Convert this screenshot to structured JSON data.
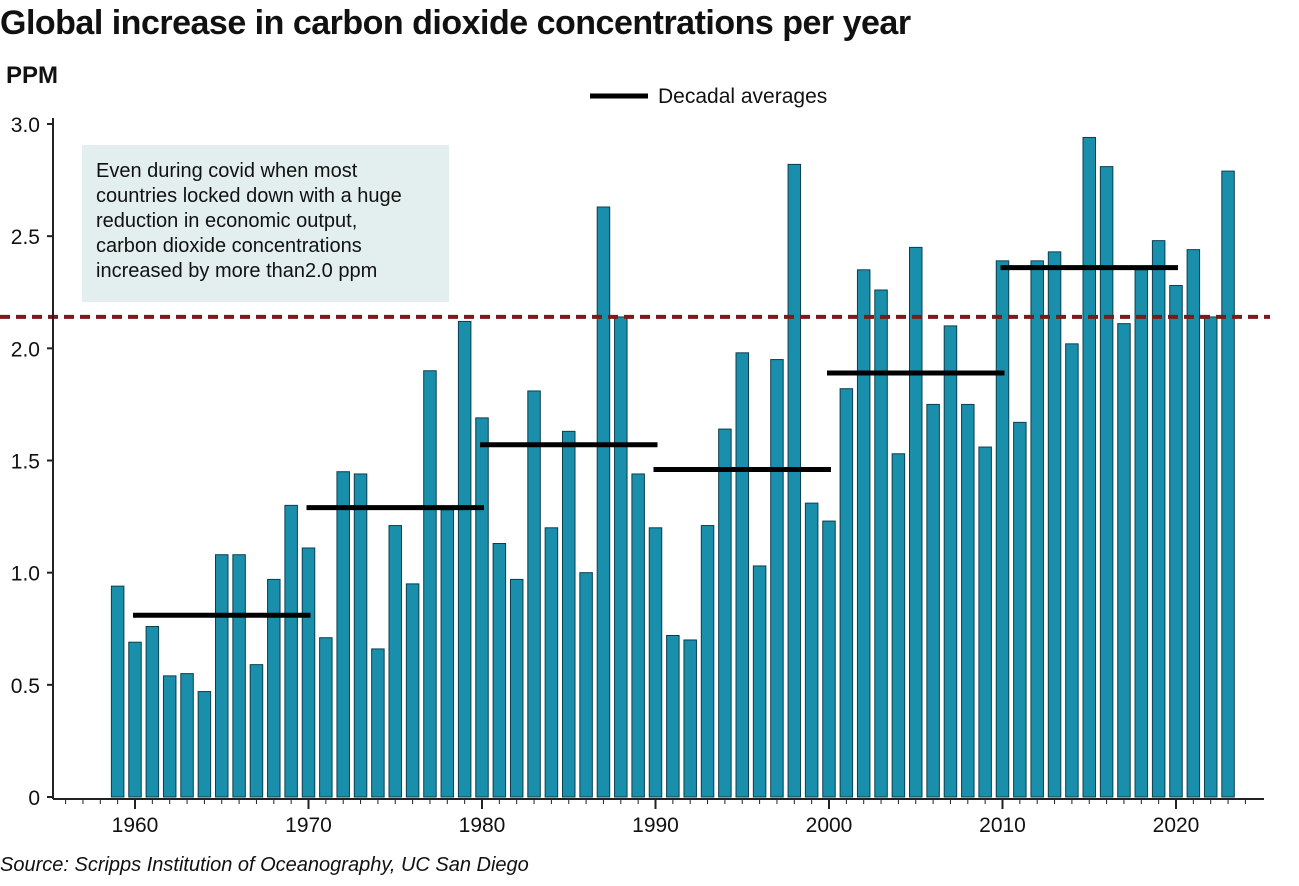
{
  "page": {
    "title": "Global increase in carbon dioxide concentrations per year",
    "unit_label": "PPM",
    "source": "Source: Scripps Institution of Oceanography, UC San Diego"
  },
  "chart_data": {
    "type": "bar",
    "title": "Global increase in carbon dioxide concentrations per year",
    "ylabel": "PPM",
    "xlabel": "",
    "ylim": [
      0,
      3.0
    ],
    "xlim": [
      1955.5,
      2024.5
    ],
    "y_ticks": [
      0,
      0.5,
      1.0,
      1.5,
      2.0,
      2.5,
      3.0
    ],
    "y_tick_labels": [
      "0",
      "0.5",
      "1.0",
      "1.5",
      "2.0",
      "2.5",
      "3.0"
    ],
    "x_ticks": [
      1960,
      1970,
      1980,
      1990,
      2000,
      2010,
      2020
    ],
    "x_tick_labels": [
      "1960",
      "1970",
      "1980",
      "1990",
      "2000",
      "2010",
      "2020"
    ],
    "bar_color": "#1a8fab",
    "categories": [
      1959,
      1960,
      1961,
      1962,
      1963,
      1964,
      1965,
      1966,
      1967,
      1968,
      1969,
      1970,
      1971,
      1972,
      1973,
      1974,
      1975,
      1976,
      1977,
      1978,
      1979,
      1980,
      1981,
      1982,
      1983,
      1984,
      1985,
      1986,
      1987,
      1988,
      1989,
      1990,
      1991,
      1992,
      1993,
      1994,
      1995,
      1996,
      1997,
      1998,
      1999,
      2000,
      2001,
      2002,
      2003,
      2004,
      2005,
      2006,
      2007,
      2008,
      2009,
      2010,
      2011,
      2012,
      2013,
      2014,
      2015,
      2016,
      2017,
      2018,
      2019,
      2020,
      2021,
      2022,
      2023
    ],
    "values": [
      0.94,
      0.69,
      0.76,
      0.54,
      0.55,
      0.47,
      1.08,
      1.08,
      0.59,
      0.97,
      1.3,
      1.11,
      0.71,
      1.45,
      1.44,
      0.66,
      1.21,
      0.95,
      1.9,
      1.28,
      2.12,
      1.69,
      1.13,
      0.97,
      1.81,
      1.2,
      1.63,
      1.0,
      2.63,
      2.14,
      1.44,
      1.2,
      0.72,
      0.7,
      1.21,
      1.64,
      1.98,
      1.03,
      1.95,
      2.82,
      1.31,
      1.23,
      1.82,
      2.35,
      2.26,
      1.53,
      2.45,
      1.75,
      2.1,
      1.75,
      1.56,
      2.39,
      1.67,
      2.39,
      2.43,
      2.02,
      2.94,
      2.81,
      2.11,
      2.35,
      2.48,
      2.28,
      2.44,
      2.14,
      2.79
    ],
    "decadal_averages": [
      {
        "start": 1960,
        "end": 1970,
        "value": 0.81
      },
      {
        "start": 1970,
        "end": 1980,
        "value": 1.29
      },
      {
        "start": 1980,
        "end": 1990,
        "value": 1.57
      },
      {
        "start": 1990,
        "end": 2000,
        "value": 1.46
      },
      {
        "start": 2000,
        "end": 2010,
        "value": 1.89
      },
      {
        "start": 2010,
        "end": 2020,
        "value": 2.36
      }
    ],
    "legend": {
      "label": "Decadal averages",
      "placement": "top-center"
    },
    "reference_line": {
      "value": 2.14,
      "color": "#7a1a1a",
      "style": "dashed"
    },
    "annotation": {
      "lines": [
        "Even during covid when most",
        "countries locked down with a huge",
        "reduction in economic output,",
        "carbon dioxide concentrations",
        "increased by more than2.0 ppm"
      ],
      "background": "#e3eeee"
    },
    "grid": false
  }
}
